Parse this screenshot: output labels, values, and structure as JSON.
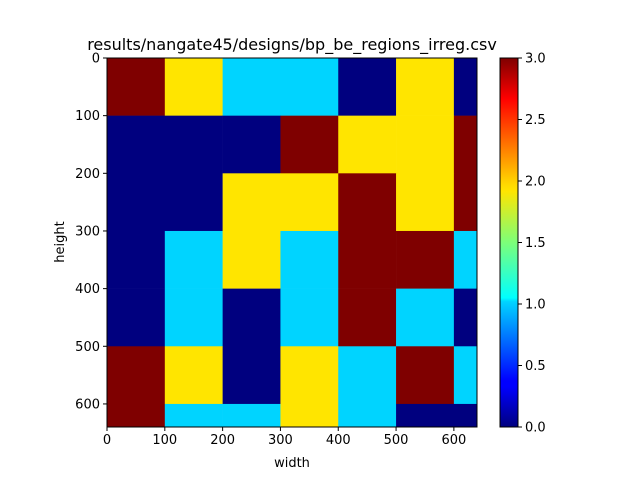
{
  "chart_data": {
    "type": "heatmap",
    "title": "results/nangate45/designs/bp_be_regions_irreg.csv",
    "xlabel": "width",
    "ylabel": "height",
    "xlim": [
      0,
      640
    ],
    "ylim": [
      640,
      0
    ],
    "x_ticks": [
      0,
      100,
      200,
      300,
      400,
      500,
      600
    ],
    "y_ticks": [
      0,
      100,
      200,
      300,
      400,
      500,
      600
    ],
    "colorbar": {
      "colormap": "jet",
      "range": [
        0.0,
        3.0
      ],
      "ticks": [
        "0.0",
        "0.5",
        "1.0",
        "1.5",
        "2.0",
        "2.5",
        "3.0"
      ]
    },
    "cell_size": 100,
    "grid": false,
    "values": [
      [
        3,
        2,
        1,
        1,
        0,
        2,
        0
      ],
      [
        0,
        0,
        0,
        3,
        2,
        2,
        3
      ],
      [
        0,
        0,
        2,
        2,
        3,
        2,
        3
      ],
      [
        0,
        1,
        2,
        1,
        3,
        3,
        1
      ],
      [
        0,
        1,
        0,
        1,
        3,
        1,
        0
      ],
      [
        3,
        2,
        0,
        2,
        1,
        3,
        1
      ],
      [
        3,
        1,
        1,
        2,
        1,
        0,
        0
      ]
    ],
    "value_colors": {
      "0": "#00007f",
      "1": "#00d4ff",
      "2": "#ffe500",
      "3": "#7f0000"
    }
  }
}
